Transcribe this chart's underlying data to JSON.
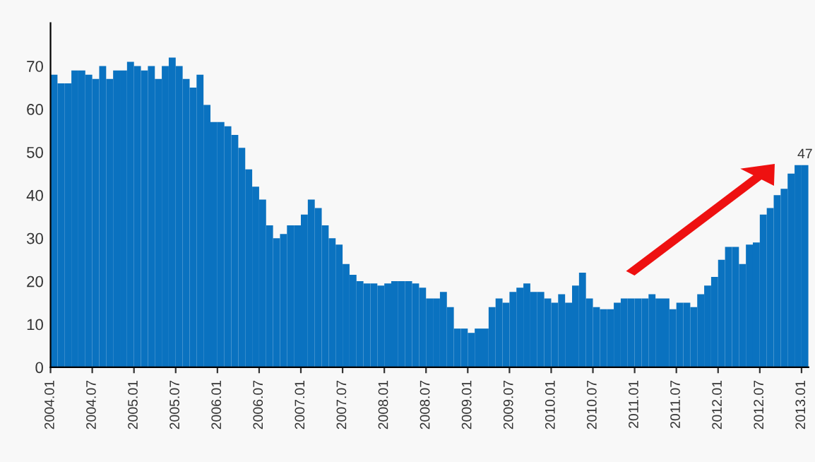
{
  "chart_data": {
    "type": "bar",
    "categories": [
      "2004.01",
      null,
      null,
      null,
      null,
      null,
      "2004.07",
      null,
      null,
      null,
      null,
      null,
      "2005.01",
      null,
      null,
      null,
      null,
      null,
      "2005.07",
      null,
      null,
      null,
      null,
      null,
      "2006.01",
      null,
      null,
      null,
      null,
      null,
      "2006.07",
      null,
      null,
      null,
      null,
      null,
      "2007.01",
      null,
      null,
      null,
      null,
      null,
      "2007.07",
      null,
      null,
      null,
      null,
      null,
      "2008.01",
      null,
      null,
      null,
      null,
      null,
      "2008.07",
      null,
      null,
      null,
      null,
      null,
      "2009.01",
      null,
      null,
      null,
      null,
      null,
      "2009.07",
      null,
      null,
      null,
      null,
      null,
      "2010.01",
      null,
      null,
      null,
      null,
      null,
      "2010.07",
      null,
      null,
      null,
      null,
      null,
      "2011.01",
      null,
      null,
      null,
      null,
      null,
      "2011.07",
      null,
      null,
      null,
      null,
      null,
      "2012.01",
      null,
      null,
      null,
      null,
      null,
      "2012.07",
      null,
      null,
      null,
      null,
      null,
      "2013.01"
    ],
    "values": [
      68,
      66,
      66,
      69,
      69,
      68,
      67,
      70,
      67,
      69,
      69,
      71,
      70,
      69,
      70,
      67,
      70,
      72,
      70,
      67,
      65,
      68,
      61,
      57,
      57,
      56,
      54,
      51,
      46,
      42,
      39,
      33,
      30,
      31,
      33,
      33,
      35.5,
      39,
      37,
      33,
      30,
      28.5,
      24,
      21.5,
      20,
      19.5,
      19.5,
      19,
      19.5,
      20,
      20,
      20,
      19.5,
      18.5,
      16,
      16,
      17.5,
      14,
      9,
      9,
      8,
      9,
      9,
      14,
      16,
      15,
      17.5,
      18.5,
      19.5,
      17.5,
      17.5,
      16,
      15,
      17,
      15,
      19,
      22,
      16,
      14,
      13.5,
      13.5,
      15,
      16,
      16,
      16,
      16,
      17,
      16,
      16,
      13.5,
      15,
      15,
      14,
      17,
      19,
      21,
      25,
      28,
      28,
      24,
      28.5,
      29,
      35.5,
      37,
      40,
      41.5,
      45,
      47,
      47
    ],
    "value_labels": [
      null,
      null,
      null,
      null,
      null,
      null,
      null,
      null,
      null,
      null,
      null,
      null,
      null,
      null,
      null,
      null,
      null,
      null,
      null,
      null,
      null,
      null,
      null,
      null,
      null,
      null,
      null,
      null,
      null,
      null,
      null,
      null,
      null,
      null,
      null,
      null,
      null,
      null,
      null,
      null,
      null,
      null,
      null,
      null,
      null,
      null,
      null,
      null,
      null,
      null,
      null,
      null,
      null,
      null,
      null,
      null,
      null,
      null,
      null,
      null,
      null,
      null,
      null,
      null,
      null,
      null,
      null,
      null,
      null,
      null,
      null,
      null,
      null,
      null,
      null,
      null,
      null,
      null,
      null,
      null,
      null,
      null,
      null,
      null,
      null,
      null,
      null,
      null,
      null,
      null,
      null,
      null,
      null,
      null,
      null,
      null,
      null,
      null,
      null,
      null,
      null,
      null,
      null,
      null,
      null,
      null,
      null,
      null,
      "47"
    ],
    "color": "#0a72c0",
    "ylim": [
      0,
      80
    ],
    "yticks": [
      0,
      10,
      20,
      30,
      40,
      50,
      60,
      70
    ],
    "grid": false,
    "legend": false
  }
}
